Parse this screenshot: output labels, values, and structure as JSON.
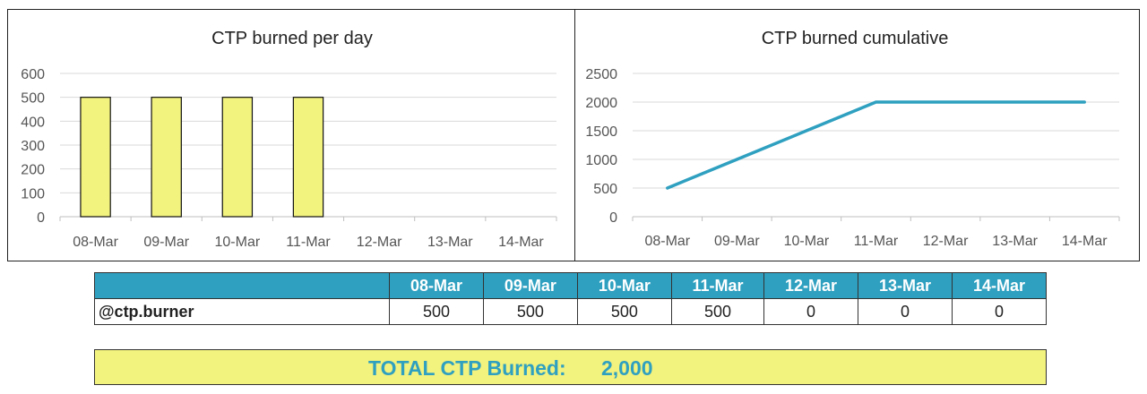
{
  "chart_data": [
    {
      "type": "bar",
      "title": "CTP burned per day",
      "categories": [
        "08-Mar",
        "09-Mar",
        "10-Mar",
        "11-Mar",
        "12-Mar",
        "13-Mar",
        "14-Mar"
      ],
      "values": [
        500,
        500,
        500,
        500,
        0,
        0,
        0
      ],
      "ylim": [
        0,
        600
      ],
      "yticks": [
        0,
        100,
        200,
        300,
        400,
        500,
        600
      ],
      "xlabel": "",
      "ylabel": "",
      "grid": true,
      "bar_color": "#f2f27e"
    },
    {
      "type": "line",
      "title": "CTP burned cumulative",
      "categories": [
        "08-Mar",
        "09-Mar",
        "10-Mar",
        "11-Mar",
        "12-Mar",
        "13-Mar",
        "14-Mar"
      ],
      "values": [
        500,
        1000,
        1500,
        2000,
        2000,
        2000,
        2000
      ],
      "ylim": [
        0,
        2500
      ],
      "yticks": [
        0,
        500,
        1000,
        1500,
        2000,
        2500
      ],
      "xlabel": "",
      "ylabel": "",
      "grid": true,
      "line_color": "#2fa0c0"
    }
  ],
  "table": {
    "columns": [
      "08-Mar",
      "09-Mar",
      "10-Mar",
      "11-Mar",
      "12-Mar",
      "13-Mar",
      "14-Mar"
    ],
    "row_label": "@ctp.burner",
    "values": [
      "500",
      "500",
      "500",
      "500",
      "0",
      "0",
      "0"
    ]
  },
  "total": {
    "label": "TOTAL CTP Burned:",
    "value": "2,000"
  },
  "colors": {
    "accent": "#2fa0c0",
    "highlight": "#f2f27e"
  }
}
